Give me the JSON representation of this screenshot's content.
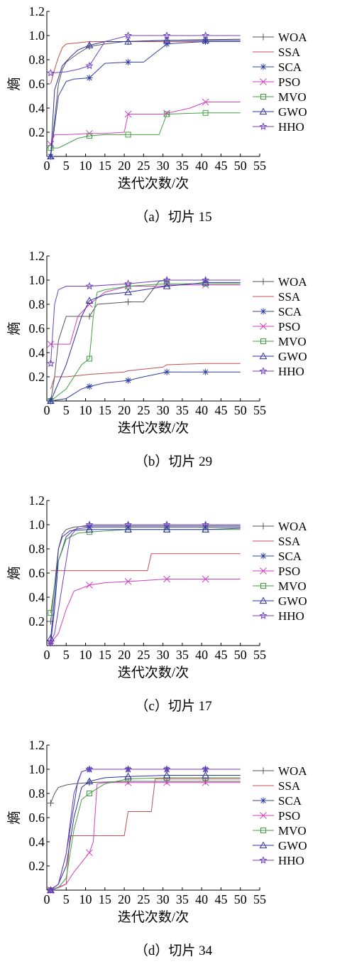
{
  "chart_data": [
    {
      "type": "line",
      "caption": "（a）切片 15",
      "xlabel": "迭代次数/次",
      "ylabel": "熵",
      "xlim": [
        0,
        55
      ],
      "ylim": [
        0,
        1.2
      ],
      "xticks": [
        0,
        5,
        10,
        15,
        20,
        25,
        30,
        35,
        40,
        45,
        50,
        55
      ],
      "yticks": [
        0.2,
        0.4,
        0.6,
        0.8,
        1.0,
        1.2
      ],
      "legend_position": "right",
      "series": [
        {
          "name": "WOA",
          "marker": "plus",
          "color": "#555555",
          "x": [
            1,
            2,
            3,
            4,
            5,
            8,
            11,
            15,
            20,
            30,
            50
          ],
          "y": [
            0.0,
            0.3,
            0.6,
            0.72,
            0.78,
            0.85,
            0.91,
            0.93,
            0.95,
            0.96,
            0.97
          ]
        },
        {
          "name": "SSA",
          "marker": "none",
          "color": "#c05050",
          "x": [
            1,
            2,
            3,
            4,
            5,
            8,
            11,
            15,
            20,
            30,
            50
          ],
          "y": [
            0.6,
            0.72,
            0.82,
            0.9,
            0.93,
            0.94,
            0.95,
            0.95,
            0.95,
            0.95,
            0.95
          ]
        },
        {
          "name": "SCA",
          "marker": "asterisk",
          "color": "#3040a0",
          "x": [
            1,
            3,
            5,
            7,
            11,
            15,
            21,
            25,
            31,
            35,
            41,
            50
          ],
          "y": [
            0.0,
            0.5,
            0.62,
            0.64,
            0.65,
            0.77,
            0.78,
            0.78,
            0.93,
            0.94,
            0.95,
            0.95
          ]
        },
        {
          "name": "PSO",
          "marker": "x",
          "color": "#d040c0",
          "x": [
            1,
            2,
            5,
            11,
            15,
            20,
            21,
            30,
            37,
            41,
            50
          ],
          "y": [
            0.1,
            0.18,
            0.18,
            0.19,
            0.19,
            0.2,
            0.35,
            0.35,
            0.4,
            0.45,
            0.45
          ]
        },
        {
          "name": "MVO",
          "marker": "square",
          "color": "#40a040",
          "x": [
            1,
            3,
            8,
            11,
            15,
            21,
            29,
            31,
            41,
            50
          ],
          "y": [
            0.07,
            0.07,
            0.15,
            0.17,
            0.18,
            0.18,
            0.18,
            0.35,
            0.36,
            0.36
          ]
        },
        {
          "name": "GWO",
          "marker": "triangle",
          "color": "#3030a0",
          "x": [
            1,
            2,
            4,
            6,
            8,
            11,
            15,
            21,
            31,
            41,
            50
          ],
          "y": [
            0.0,
            0.55,
            0.75,
            0.82,
            0.88,
            0.92,
            0.95,
            0.95,
            0.96,
            0.96,
            0.96
          ]
        },
        {
          "name": "HHO",
          "marker": "star",
          "color": "#7040c0",
          "x": [
            1,
            5,
            8,
            11,
            15,
            21,
            31,
            41,
            50
          ],
          "y": [
            0.69,
            0.7,
            0.72,
            0.75,
            0.95,
            1.0,
            1.0,
            1.0,
            1.0
          ]
        }
      ]
    },
    {
      "type": "line",
      "caption": "（b）切片 29",
      "xlabel": "迭代次数/次",
      "ylabel": "熵",
      "xlim": [
        0,
        55
      ],
      "ylim": [
        0,
        1.2
      ],
      "xticks": [
        0,
        5,
        10,
        15,
        20,
        25,
        30,
        35,
        40,
        45,
        50,
        55
      ],
      "yticks": [
        0.2,
        0.4,
        0.6,
        0.8,
        1.0,
        1.2
      ],
      "legend_position": "right",
      "series": [
        {
          "name": "WOA",
          "marker": "plus",
          "color": "#555555",
          "x": [
            1,
            2,
            3,
            5,
            9,
            11,
            13,
            21,
            25,
            29,
            31,
            41,
            50
          ],
          "y": [
            0.0,
            0.2,
            0.5,
            0.7,
            0.7,
            0.7,
            0.8,
            0.82,
            0.82,
            0.99,
            1.0,
            1.0,
            1.0
          ]
        },
        {
          "name": "SSA",
          "marker": "none",
          "color": "#c05050",
          "x": [
            1,
            2,
            5,
            11,
            20,
            21,
            30,
            31,
            41,
            50
          ],
          "y": [
            0.1,
            0.2,
            0.2,
            0.22,
            0.24,
            0.25,
            0.28,
            0.3,
            0.31,
            0.31
          ]
        },
        {
          "name": "SCA",
          "marker": "asterisk",
          "color": "#3040a0",
          "x": [
            1,
            5,
            9,
            11,
            15,
            21,
            25,
            31,
            35,
            41,
            50
          ],
          "y": [
            0.0,
            0.02,
            0.1,
            0.12,
            0.15,
            0.17,
            0.2,
            0.24,
            0.24,
            0.24,
            0.24
          ]
        },
        {
          "name": "PSO",
          "marker": "x",
          "color": "#d040c0",
          "x": [
            1,
            2,
            6,
            8,
            11,
            15,
            21,
            30,
            31,
            41,
            50
          ],
          "y": [
            0.47,
            0.47,
            0.47,
            0.7,
            0.8,
            0.9,
            0.95,
            0.95,
            0.96,
            0.96,
            0.96
          ]
        },
        {
          "name": "MVO",
          "marker": "square",
          "color": "#40a040",
          "x": [
            1,
            5,
            9,
            11,
            12,
            13,
            15,
            21,
            31,
            41,
            50
          ],
          "y": [
            0.0,
            0.1,
            0.3,
            0.35,
            0.7,
            0.9,
            0.92,
            0.95,
            0.97,
            0.97,
            0.97
          ]
        },
        {
          "name": "GWO",
          "marker": "triangle",
          "color": "#3030a0",
          "x": [
            1,
            5,
            9,
            11,
            15,
            21,
            25,
            31,
            41,
            50
          ],
          "y": [
            0.0,
            0.3,
            0.7,
            0.83,
            0.88,
            0.9,
            0.92,
            0.95,
            0.98,
            0.98
          ]
        },
        {
          "name": "HHO",
          "marker": "star",
          "color": "#7040c0",
          "x": [
            1,
            2,
            3,
            5,
            11,
            21,
            31,
            41,
            50
          ],
          "y": [
            0.31,
            0.8,
            0.92,
            0.95,
            0.95,
            0.97,
            1.0,
            1.0,
            1.0
          ]
        }
      ]
    },
    {
      "type": "line",
      "caption": "（c）切片 17",
      "xlabel": "迭代次数/次",
      "ylabel": "熵",
      "xlim": [
        0,
        55
      ],
      "ylim": [
        0,
        1.2
      ],
      "xticks": [
        0,
        5,
        10,
        15,
        20,
        25,
        30,
        35,
        40,
        45,
        50,
        55
      ],
      "yticks": [
        0.2,
        0.4,
        0.6,
        0.8,
        1.0,
        1.2
      ],
      "legend_position": "right",
      "series": [
        {
          "name": "WOA",
          "marker": "plus",
          "color": "#555555",
          "x": [
            1,
            2,
            3,
            4,
            5,
            7,
            11,
            21,
            31,
            41,
            50
          ],
          "y": [
            0.2,
            0.5,
            0.8,
            0.92,
            0.96,
            0.98,
            0.99,
            0.99,
            0.99,
            0.99,
            0.99
          ]
        },
        {
          "name": "SSA",
          "marker": "none",
          "color": "#c05050",
          "x": [
            1,
            11,
            21,
            26,
            27,
            31,
            41,
            50
          ],
          "y": [
            0.62,
            0.62,
            0.62,
            0.62,
            0.76,
            0.76,
            0.76,
            0.76
          ]
        },
        {
          "name": "SCA",
          "marker": "asterisk",
          "color": "#3040a0",
          "x": [
            1,
            2,
            3,
            5,
            7,
            11,
            21,
            31,
            41,
            50
          ],
          "y": [
            0.02,
            0.3,
            0.7,
            0.9,
            0.96,
            0.98,
            0.98,
            0.98,
            0.98,
            0.98
          ]
        },
        {
          "name": "PSO",
          "marker": "x",
          "color": "#d040c0",
          "x": [
            1,
            3,
            5,
            7,
            11,
            15,
            21,
            31,
            41,
            50
          ],
          "y": [
            0.02,
            0.1,
            0.3,
            0.45,
            0.5,
            0.52,
            0.53,
            0.55,
            0.55,
            0.55
          ]
        },
        {
          "name": "MVO",
          "marker": "square",
          "color": "#40a040",
          "x": [
            1,
            2,
            3,
            5,
            8,
            11,
            21,
            31,
            41,
            50
          ],
          "y": [
            0.27,
            0.5,
            0.7,
            0.88,
            0.93,
            0.94,
            0.96,
            0.96,
            0.96,
            0.96
          ]
        },
        {
          "name": "GWO",
          "marker": "triangle",
          "color": "#3030a0",
          "x": [
            1,
            2,
            3,
            4,
            6,
            11,
            21,
            31,
            41,
            50
          ],
          "y": [
            0.06,
            0.4,
            0.8,
            0.9,
            0.95,
            0.96,
            0.96,
            0.96,
            0.96,
            0.97
          ]
        },
        {
          "name": "HHO",
          "marker": "star",
          "color": "#7040c0",
          "x": [
            1,
            2,
            4,
            6,
            8,
            11,
            21,
            31,
            41,
            50
          ],
          "y": [
            0.03,
            0.1,
            0.5,
            0.9,
            0.98,
            1.0,
            1.0,
            1.0,
            1.0,
            1.0
          ]
        }
      ]
    },
    {
      "type": "line",
      "caption": "（d）切片 34",
      "xlabel": "迭代次数/次",
      "ylabel": "熵",
      "xlim": [
        0,
        55
      ],
      "ylim": [
        0,
        1.2
      ],
      "xticks": [
        0,
        5,
        10,
        15,
        20,
        25,
        30,
        35,
        40,
        45,
        50,
        55
      ],
      "yticks": [
        0.2,
        0.4,
        0.6,
        0.8,
        1.0,
        1.2
      ],
      "legend_position": "right",
      "series": [
        {
          "name": "WOA",
          "marker": "plus",
          "color": "#555555",
          "x": [
            1,
            2,
            3,
            5,
            7,
            11,
            21,
            31,
            41,
            50
          ],
          "y": [
            0.72,
            0.8,
            0.85,
            0.87,
            0.88,
            0.89,
            0.9,
            0.9,
            0.9,
            0.9
          ]
        },
        {
          "name": "SSA",
          "marker": "none",
          "color": "#c05050",
          "x": [
            1,
            3,
            5,
            6,
            15,
            20,
            21,
            27,
            28,
            31,
            41,
            50
          ],
          "y": [
            0.0,
            0.02,
            0.05,
            0.45,
            0.45,
            0.45,
            0.65,
            0.65,
            0.92,
            0.92,
            0.92,
            0.92
          ]
        },
        {
          "name": "SCA",
          "marker": "asterisk",
          "color": "#3040a0",
          "x": [
            1,
            3,
            5,
            7,
            8,
            9,
            11,
            21,
            31,
            41,
            50
          ],
          "y": [
            0.0,
            0.05,
            0.3,
            0.7,
            0.9,
            0.98,
            1.0,
            1.0,
            1.0,
            1.0,
            1.0
          ]
        },
        {
          "name": "PSO",
          "marker": "x",
          "color": "#d040c0",
          "x": [
            1,
            5,
            7,
            11,
            12,
            13,
            15,
            21,
            31,
            41,
            50
          ],
          "y": [
            0.0,
            0.05,
            0.15,
            0.31,
            0.4,
            0.88,
            0.89,
            0.89,
            0.89,
            0.89,
            0.89
          ]
        },
        {
          "name": "MVO",
          "marker": "square",
          "color": "#40a040",
          "x": [
            1,
            3,
            5,
            7,
            9,
            11,
            15,
            21,
            31,
            41,
            50
          ],
          "y": [
            0.0,
            0.02,
            0.1,
            0.5,
            0.75,
            0.8,
            0.88,
            0.92,
            0.93,
            0.93,
            0.93
          ]
        },
        {
          "name": "GWO",
          "marker": "triangle",
          "color": "#3030a0",
          "x": [
            1,
            3,
            5,
            7,
            9,
            11,
            15,
            21,
            31,
            41,
            50
          ],
          "y": [
            0.0,
            0.05,
            0.2,
            0.6,
            0.85,
            0.9,
            0.93,
            0.94,
            0.95,
            0.95,
            0.95
          ]
        },
        {
          "name": "HHO",
          "marker": "star",
          "color": "#7040c0",
          "x": [
            1,
            3,
            5,
            7,
            9,
            11,
            15,
            21,
            31,
            41,
            50
          ],
          "y": [
            0.0,
            0.05,
            0.3,
            0.8,
            0.98,
            1.0,
            1.0,
            1.0,
            1.0,
            1.0,
            1.0
          ]
        }
      ]
    }
  ]
}
